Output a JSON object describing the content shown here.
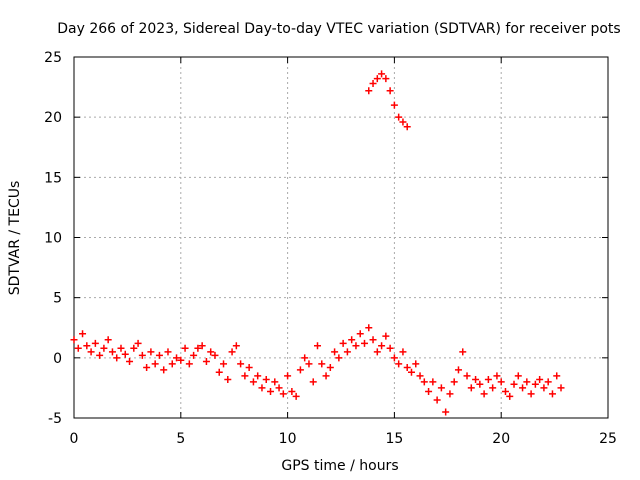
{
  "chart_data": {
    "type": "scatter",
    "title": "Day 266 of 2023, Sidereal Day-to-day VTEC variation (SDTVAR) for receiver pots",
    "xlabel": "GPS time / hours",
    "ylabel": "SDTVAR / TECUs",
    "xlim": [
      0,
      25
    ],
    "ylim": [
      -5,
      25
    ],
    "xticks": [
      0,
      5,
      10,
      15,
      20,
      25
    ],
    "yticks": [
      -5,
      0,
      5,
      10,
      15,
      20,
      25
    ],
    "grid": true,
    "marker": "+",
    "series": [
      {
        "name": "SDTVAR",
        "color": "#ff0000",
        "x": [
          0.0,
          0.2,
          0.4,
          0.6,
          0.8,
          1.0,
          1.2,
          1.4,
          1.6,
          1.8,
          2.0,
          2.2,
          2.4,
          2.6,
          2.8,
          3.0,
          3.2,
          3.4,
          3.6,
          3.8,
          4.0,
          4.2,
          4.4,
          4.6,
          4.8,
          5.0,
          5.2,
          5.4,
          5.6,
          5.8,
          6.0,
          6.2,
          6.4,
          6.6,
          6.8,
          7.0,
          7.2,
          7.4,
          7.6,
          7.8,
          8.0,
          8.2,
          8.4,
          8.6,
          8.8,
          9.0,
          9.2,
          9.4,
          9.6,
          9.8,
          10.0,
          10.2,
          10.4,
          10.6,
          10.8,
          11.0,
          11.2,
          11.4,
          11.6,
          11.8,
          12.0,
          12.2,
          12.4,
          12.6,
          12.8,
          13.0,
          13.2,
          13.4,
          13.6,
          13.8,
          14.0,
          14.2,
          14.4,
          14.6,
          14.8,
          15.0,
          15.2,
          15.4,
          15.6,
          15.8,
          16.0,
          16.2,
          16.4,
          16.6,
          16.8,
          17.0,
          17.2,
          17.4,
          17.6,
          17.8,
          18.0,
          18.2,
          18.4,
          18.6,
          18.8,
          19.0,
          19.2,
          19.4,
          19.6,
          19.8,
          20.0,
          20.2,
          20.4,
          20.6,
          20.8,
          21.0,
          21.2,
          21.4,
          21.6,
          21.8,
          22.0,
          22.2,
          22.4,
          22.6,
          22.8,
          13.8,
          14.0,
          14.2,
          14.4,
          14.6,
          14.8,
          15.0,
          15.2,
          15.4,
          15.6
        ],
        "y": [
          1.5,
          0.8,
          2.0,
          1.0,
          0.5,
          1.2,
          0.2,
          0.8,
          1.5,
          0.5,
          0.0,
          0.8,
          0.3,
          -0.3,
          0.8,
          1.2,
          0.2,
          -0.8,
          0.5,
          -0.5,
          0.2,
          -1.0,
          0.5,
          -0.5,
          0.0,
          -0.2,
          0.8,
          -0.5,
          0.2,
          0.8,
          1.0,
          -0.3,
          0.5,
          0.2,
          -1.2,
          -0.5,
          -1.8,
          0.5,
          1.0,
          -0.5,
          -1.5,
          -0.8,
          -2.0,
          -1.5,
          -2.5,
          -1.8,
          -2.8,
          -2.0,
          -2.5,
          -3.0,
          -1.5,
          -2.8,
          -3.2,
          -1.0,
          0.0,
          -0.5,
          -2.0,
          1.0,
          -0.5,
          -1.5,
          -0.8,
          0.5,
          0.0,
          1.2,
          0.5,
          1.5,
          1.0,
          2.0,
          1.2,
          2.5,
          1.5,
          0.5,
          1.0,
          1.8,
          0.8,
          0.0,
          -0.5,
          0.5,
          -0.8,
          -1.2,
          -0.5,
          -1.5,
          -2.0,
          -2.8,
          -2.0,
          -3.5,
          -2.5,
          -4.5,
          -3.0,
          -2.0,
          -1.0,
          0.5,
          -1.5,
          -2.5,
          -1.8,
          -2.2,
          -3.0,
          -1.8,
          -2.5,
          -1.5,
          -2.0,
          -2.8,
          -3.2,
          -2.2,
          -1.5,
          -2.5,
          -2.0,
          -3.0,
          -2.2,
          -1.8,
          -2.5,
          -2.0,
          -3.0,
          -1.5,
          -2.5,
          22.2,
          22.8,
          23.2,
          23.6,
          23.2,
          22.2,
          21.0,
          20.0,
          19.6,
          19.2
        ]
      }
    ]
  }
}
